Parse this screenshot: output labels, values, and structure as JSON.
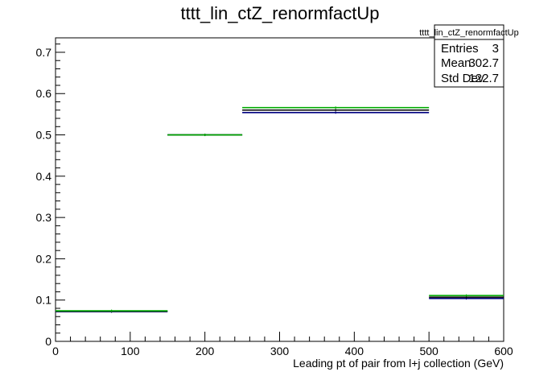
{
  "title": "tttt_lin_ctZ_renormfactUp",
  "stats": {
    "title": "tttt_lin_ctZ_renormfactUp",
    "rows": [
      {
        "label": "Entries",
        "value": "3"
      },
      {
        "label": "Mean",
        "value": "302.7"
      },
      {
        "label": "Std Dev",
        "value": "122.7"
      }
    ]
  },
  "chart_data": {
    "type": "histogram",
    "title": "tttt_lin_ctZ_renormfactUp",
    "xlabel": "Leading pt of pair from l+j collection (GeV)",
    "ylabel": "",
    "xlim": [
      0,
      600
    ],
    "ylim": [
      0,
      0.735
    ],
    "x_ticks": [
      0,
      100,
      200,
      300,
      400,
      500,
      600
    ],
    "y_ticks": [
      0,
      0.1,
      0.2,
      0.3,
      0.4,
      0.5,
      0.6,
      0.7
    ],
    "x_tick_labels": [
      "0",
      "100",
      "200",
      "300",
      "400",
      "500",
      "600"
    ],
    "y_tick_labels": [
      "0",
      "0.1",
      "0.2",
      "0.3",
      "0.4",
      "0.5",
      "0.6",
      "0.7"
    ],
    "bins": [
      {
        "low": 0,
        "high": 150
      },
      {
        "low": 150,
        "high": 250
      },
      {
        "low": 250,
        "high": 500
      },
      {
        "low": 500,
        "high": 600
      }
    ],
    "series": [
      {
        "color": "#00007f",
        "values": [
          0.072,
          0.5,
          0.554,
          0.104
        ]
      },
      {
        "color": "#000000",
        "values": [
          0.073,
          0.5,
          0.56,
          0.107
        ]
      },
      {
        "color": "#00aa00",
        "values": [
          0.074,
          0.5,
          0.566,
          0.111
        ]
      }
    ],
    "grid": false,
    "legend": "top-right"
  }
}
